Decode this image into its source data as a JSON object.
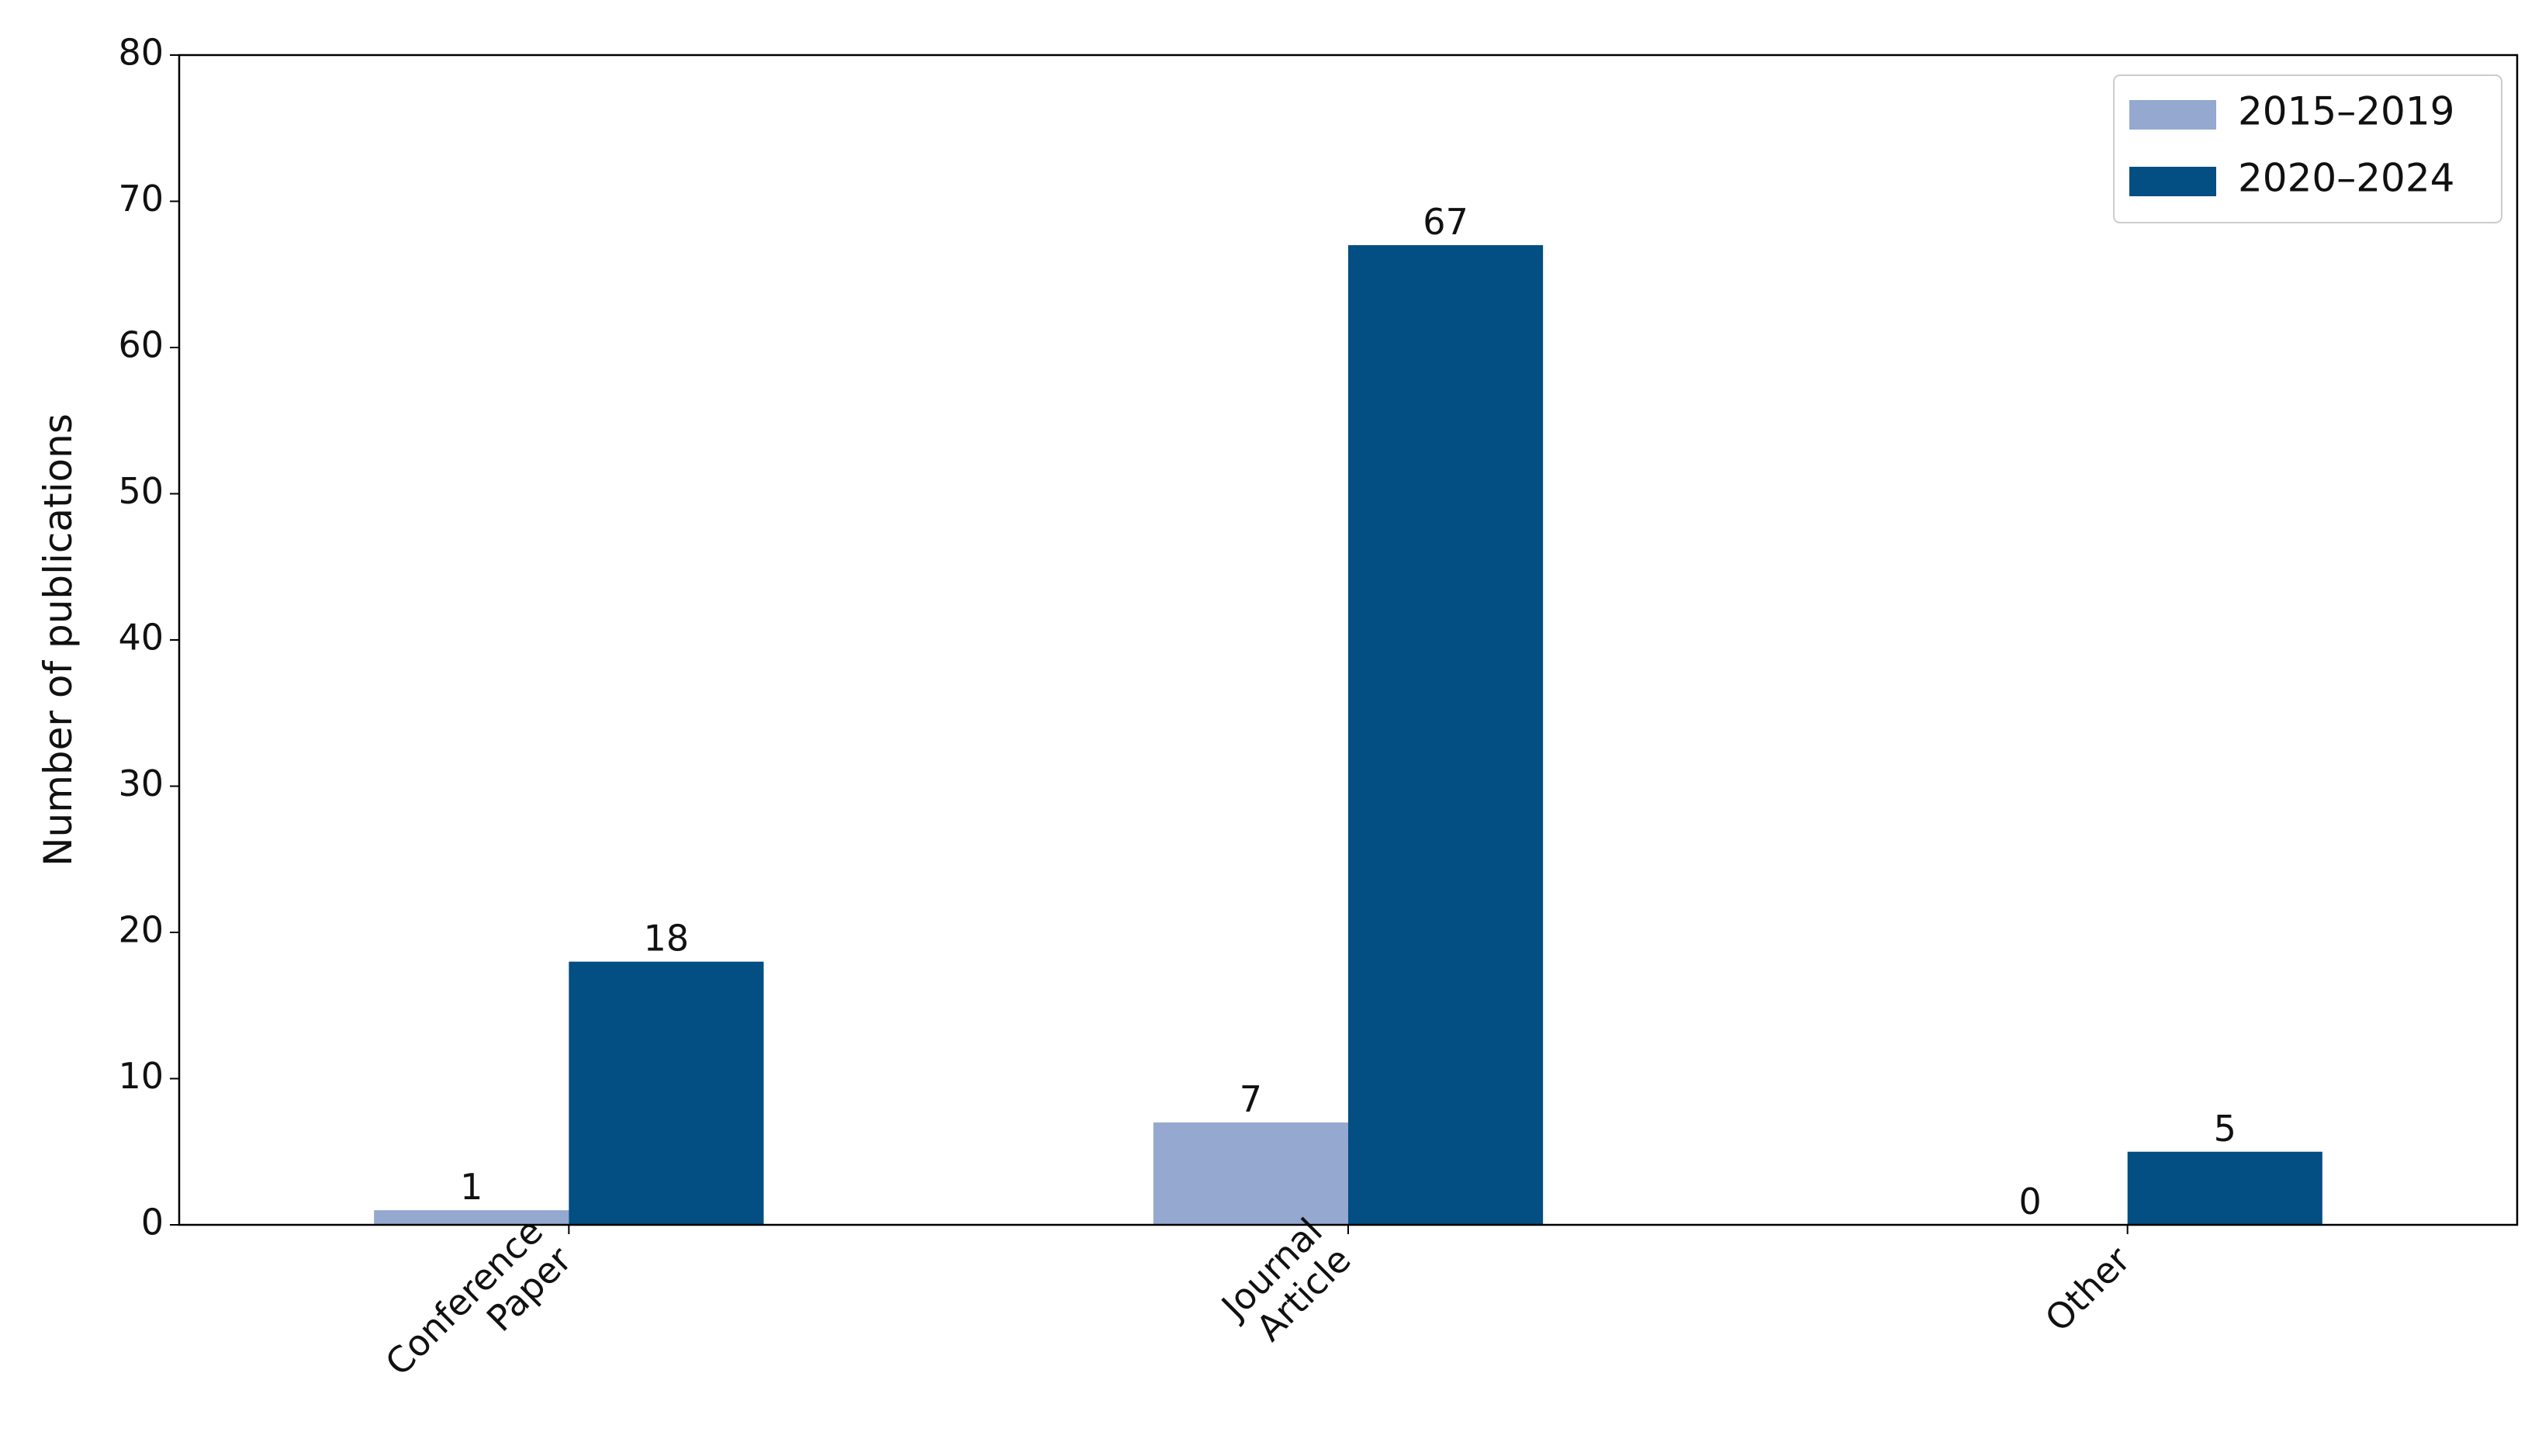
{
  "chart_data": {
    "type": "bar",
    "y_label": "Number of publications",
    "categories": [
      "Conference\nPaper",
      "Journal\nArticle",
      "Other"
    ],
    "series": [
      {
        "name": "2015–2019",
        "color": "#94a8d0",
        "values": [
          1,
          7,
          0
        ]
      },
      {
        "name": "2020–2024",
        "color": "#034e82",
        "values": [
          18,
          67,
          5
        ]
      }
    ],
    "ylim": [
      0,
      80
    ],
    "yticks": [
      0,
      10,
      20,
      30,
      40,
      50,
      60,
      70,
      80
    ],
    "legend": "upper right",
    "grid": false
  }
}
